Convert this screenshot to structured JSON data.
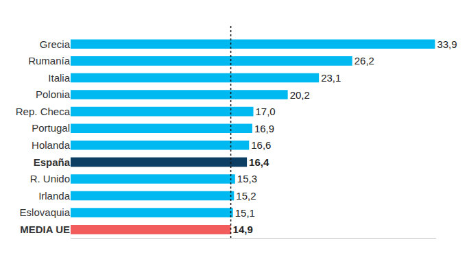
{
  "chart_data": {
    "type": "bar",
    "orientation": "horizontal",
    "categories": [
      "Grecia",
      "Rumanía",
      "Italia",
      "Polonia",
      "Rep. Checa",
      "Portugal",
      "Holanda",
      "España",
      "R. Unido",
      "Irlanda",
      "Eslovaquia",
      "MEDIA UE"
    ],
    "values": [
      33.9,
      26.2,
      23.1,
      20.2,
      17.0,
      16.9,
      16.6,
      16.4,
      15.3,
      15.2,
      15.1,
      14.9
    ],
    "value_labels": [
      "33,9",
      "26,2",
      "23,1",
      "20,2",
      "17,0",
      "16,9",
      "16,6",
      "16,4",
      "15,3",
      "15,2",
      "15,1",
      "14,9"
    ],
    "colors": [
      "#00b9f1",
      "#00b9f1",
      "#00b9f1",
      "#00b9f1",
      "#00b9f1",
      "#00b9f1",
      "#00b9f1",
      "#0c3e63",
      "#00b9f1",
      "#00b9f1",
      "#00b9f1",
      "#f25c5c"
    ],
    "xlim": [
      0,
      34
    ],
    "data_labels": true,
    "tick_labels": "y",
    "grid": false
  }
}
